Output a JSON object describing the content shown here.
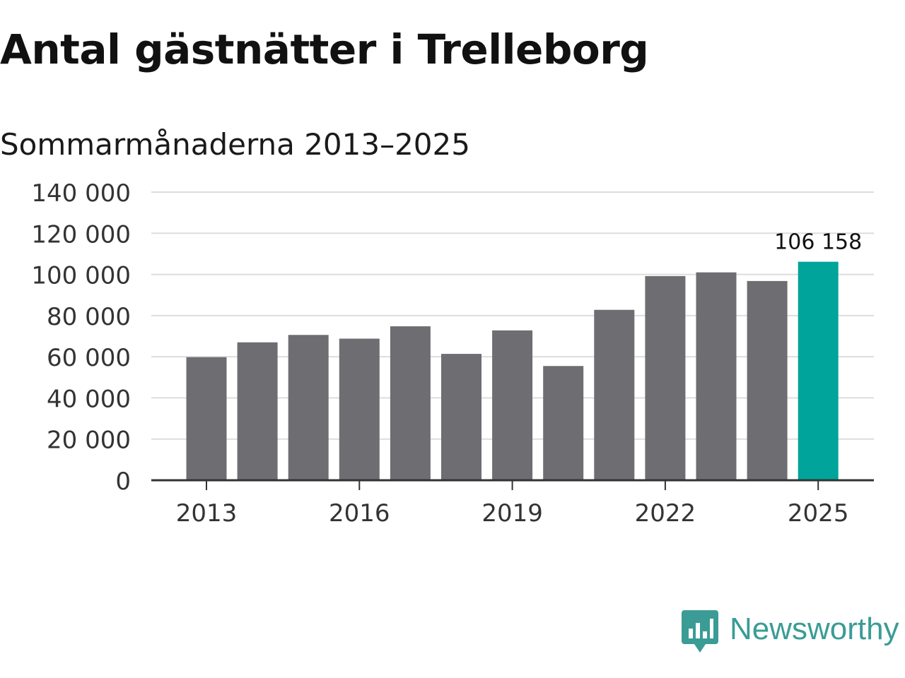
{
  "header": {
    "title": "Antal gästnätter i Trelleborg",
    "subtitle": "Sommarmånaderna 2013–2025"
  },
  "brand": {
    "name": "Newsworthy",
    "icon": "newsworthy-logo-icon",
    "color": "#3a9c95"
  },
  "chart_data": {
    "type": "bar",
    "categories": [
      "2013",
      "2014",
      "2015",
      "2016",
      "2017",
      "2018",
      "2019",
      "2020",
      "2021",
      "2022",
      "2023",
      "2024",
      "2025"
    ],
    "values": [
      59800,
      67000,
      70600,
      68800,
      74800,
      61400,
      72800,
      55500,
      82800,
      99200,
      101000,
      96800,
      106158
    ],
    "x_tick_labels": [
      "2013",
      "2016",
      "2019",
      "2022",
      "2025"
    ],
    "y_tick_labels": [
      "0",
      "20 000",
      "40 000",
      "60 000",
      "80 000",
      "100 000",
      "120 000",
      "140 000"
    ],
    "ylim": [
      0,
      140000
    ],
    "y_ticks": [
      0,
      20000,
      40000,
      60000,
      80000,
      100000,
      120000,
      140000
    ],
    "highlight_index": 12,
    "highlight_label": "106 158",
    "colors": {
      "bar": "#6e6d72",
      "highlight": "#00a49a",
      "grid": "#dddddd",
      "axis": "#333333",
      "text": "#333333"
    },
    "grid": true,
    "legend": "none"
  }
}
